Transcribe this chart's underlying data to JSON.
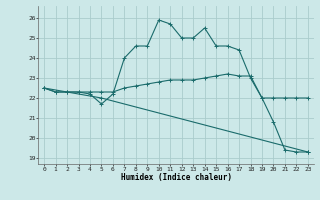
{
  "xlabel": "Humidex (Indice chaleur)",
  "bg_color": "#cce8e8",
  "line_color": "#1a6b6b",
  "grid_color": "#b8d8d8",
  "xlim": [
    -0.5,
    23.5
  ],
  "ylim": [
    18.7,
    26.6
  ],
  "yticks": [
    19,
    20,
    21,
    22,
    23,
    24,
    25,
    26
  ],
  "xticks": [
    0,
    1,
    2,
    3,
    4,
    5,
    6,
    7,
    8,
    9,
    10,
    11,
    12,
    13,
    14,
    15,
    16,
    17,
    18,
    19,
    20,
    21,
    22,
    23
  ],
  "line1_x": [
    0,
    1,
    2,
    3,
    4,
    5,
    6,
    7,
    8,
    9,
    10,
    11,
    12,
    13,
    14,
    15,
    16,
    17,
    18,
    19,
    20,
    21,
    22,
    23
  ],
  "line1_y": [
    22.5,
    22.3,
    22.3,
    22.3,
    22.2,
    21.7,
    22.2,
    24.0,
    24.6,
    24.6,
    25.9,
    25.7,
    25.0,
    25.0,
    25.5,
    24.6,
    24.6,
    24.4,
    23.0,
    22.0,
    20.8,
    19.4,
    19.3,
    19.3
  ],
  "line2_x": [
    0,
    1,
    2,
    3,
    4,
    5,
    6,
    7,
    8,
    9,
    10,
    11,
    12,
    13,
    14,
    15,
    16,
    17,
    18,
    19,
    20,
    21,
    22,
    23
  ],
  "line2_y": [
    22.5,
    22.3,
    22.3,
    22.3,
    22.3,
    22.3,
    22.3,
    22.5,
    22.6,
    22.7,
    22.8,
    22.9,
    22.9,
    22.9,
    23.0,
    23.1,
    23.2,
    23.1,
    23.1,
    22.0,
    22.0,
    22.0,
    22.0,
    22.0
  ],
  "line3_x": [
    0,
    5,
    23
  ],
  "line3_y": [
    22.5,
    22.0,
    19.3
  ]
}
